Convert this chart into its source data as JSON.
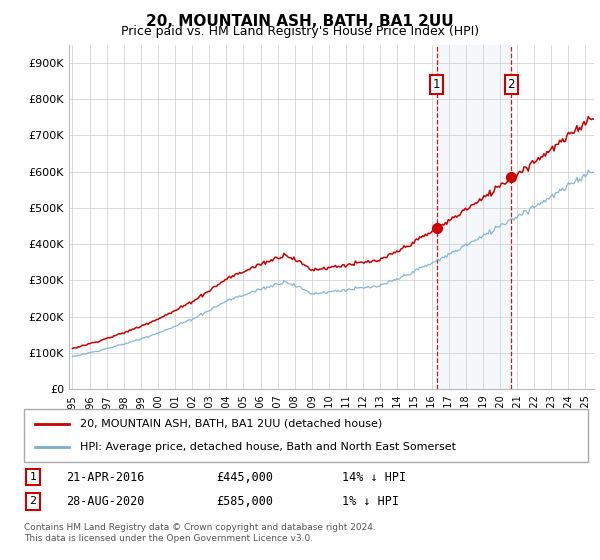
{
  "title": "20, MOUNTAIN ASH, BATH, BA1 2UU",
  "subtitle": "Price paid vs. HM Land Registry's House Price Index (HPI)",
  "legend_line1": "20, MOUNTAIN ASH, BATH, BA1 2UU (detached house)",
  "legend_line2": "HPI: Average price, detached house, Bath and North East Somerset",
  "sale1_label": "1",
  "sale1_date": "21-APR-2016",
  "sale1_price": "£445,000",
  "sale1_hpi": "14% ↓ HPI",
  "sale2_label": "2",
  "sale2_date": "28-AUG-2020",
  "sale2_price": "£585,000",
  "sale2_hpi": "1% ↓ HPI",
  "footer": "Contains HM Land Registry data © Crown copyright and database right 2024.\nThis data is licensed under the Open Government Licence v3.0.",
  "hpi_color": "#7bafd4",
  "price_color": "#cc0000",
  "sale_marker_color": "#cc0000",
  "dashed_line_color": "#cc0000",
  "ylim": [
    0,
    950000
  ],
  "yticks": [
    0,
    100000,
    200000,
    300000,
    400000,
    500000,
    600000,
    700000,
    800000,
    900000
  ],
  "ytick_labels": [
    "£0",
    "£100K",
    "£200K",
    "£300K",
    "£400K",
    "£500K",
    "£600K",
    "£700K",
    "£800K",
    "£900K"
  ],
  "year_start": 1995,
  "year_end": 2025,
  "sale1_year": 2016.3,
  "sale1_value": 445000,
  "sale2_year": 2020.66,
  "sale2_value": 585000
}
